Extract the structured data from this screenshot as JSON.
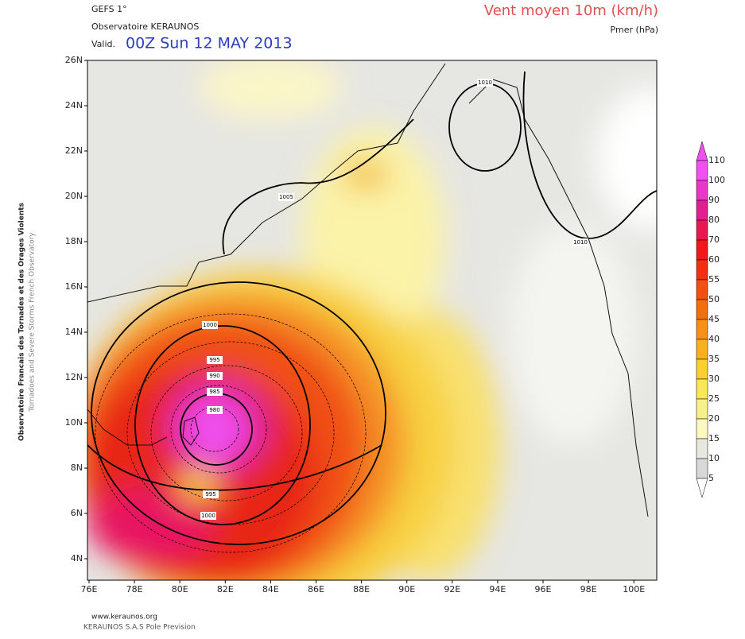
{
  "header": {
    "model": "GEFS 1°",
    "source": "Observatoire KERAUNOS",
    "valid_prefix": "Valid.",
    "valid_time": "00Z Sun 12 MAY 2013",
    "title": "Vent moyen 10m (km/h)",
    "subtitle": "Pmer (hPa)"
  },
  "side_text": {
    "line1": "Observatoire Francais des Tornades et des Orages Violents",
    "line2": "Tornadoes and Severe Storms French Observatory"
  },
  "axes": {
    "lat_labels": [
      "26N",
      "24N",
      "22N",
      "20N",
      "18N",
      "16N",
      "14N",
      "12N",
      "10N",
      "8N",
      "6N",
      "4N"
    ],
    "lon_labels": [
      "76E",
      "78E",
      "80E",
      "82E",
      "84E",
      "86E",
      "88E",
      "90E",
      "92E",
      "94E",
      "96E",
      "98E",
      "100E"
    ]
  },
  "colorbar": {
    "labels": [
      110,
      100,
      90,
      80,
      70,
      60,
      55,
      50,
      45,
      40,
      35,
      30,
      25,
      20,
      15,
      10,
      5
    ],
    "colors": [
      "#f050f0",
      "#e838c8",
      "#e02090",
      "#e81850",
      "#f01818",
      "#f03010",
      "#f05010",
      "#f07010",
      "#f89018",
      "#f8b020",
      "#f8d030",
      "#f8e858",
      "#f8f088",
      "#fbf8c0",
      "#e8e8e0",
      "#d8d8d8",
      "#ffffff"
    ]
  },
  "contour_labels": [
    "1000",
    "995",
    "990",
    "985",
    "980",
    "995",
    "1000",
    "1005",
    "1010",
    "1010"
  ],
  "footer": {
    "url": "www.keraunos.org",
    "company": "KERAUNOS S.A.S Pole Prevision"
  }
}
